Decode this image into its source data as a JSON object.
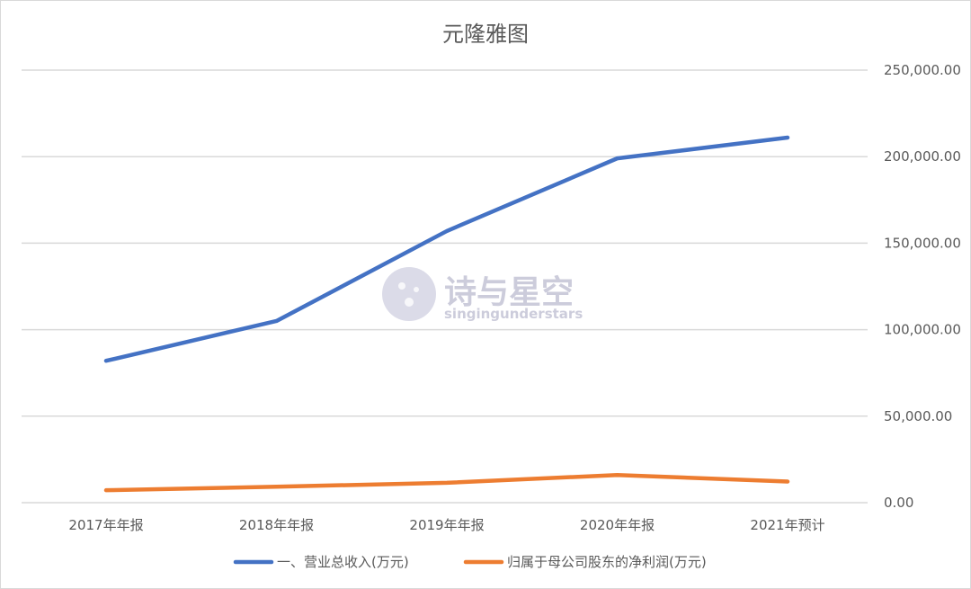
{
  "chart_data": {
    "type": "line",
    "title": "元隆雅图",
    "categories": [
      "2017年年报",
      "2018年年报",
      "2019年年报",
      "2020年年报",
      "2021年预计"
    ],
    "series": [
      {
        "name": "一、营业总收入(万元)",
        "values": [
          82000,
          105000,
          157000,
          199000,
          211000
        ],
        "color": "#4472c4"
      },
      {
        "name": "归属于母公司股东的净利润(万元)",
        "values": [
          7200,
          9200,
          11500,
          16000,
          12200
        ],
        "color": "#ed7d31"
      }
    ],
    "yticks": [
      "0.00",
      "50,000.00",
      "100,000.00",
      "150,000.00",
      "200,000.00",
      "250,000.00"
    ],
    "ylim": [
      0,
      250000
    ],
    "y_axis_side": "right",
    "grid": true,
    "legend_position": "bottom",
    "watermark": {
      "cn": "诗与星空",
      "en": "singingunderstars"
    }
  }
}
